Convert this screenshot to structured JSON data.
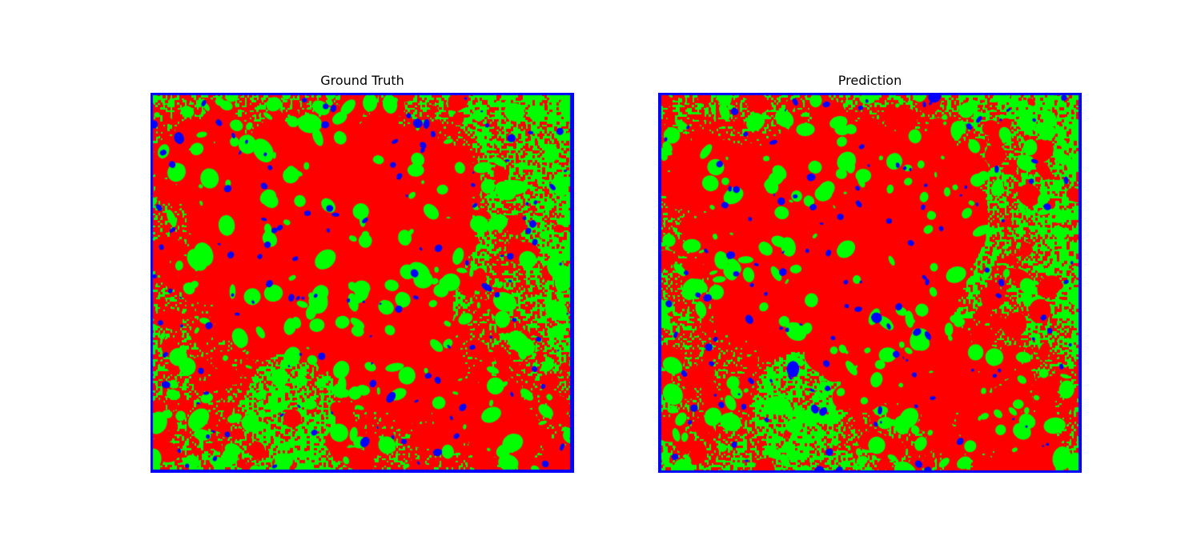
{
  "panels": [
    {
      "id": "ground-truth",
      "title": "Ground Truth",
      "seed": 11
    },
    {
      "id": "prediction",
      "title": "Prediction",
      "seed": 29
    }
  ],
  "colors": {
    "background": "#ffffff",
    "vegetation": "#00ff00",
    "urban": "#ff0000",
    "water": "#0000ff"
  }
}
